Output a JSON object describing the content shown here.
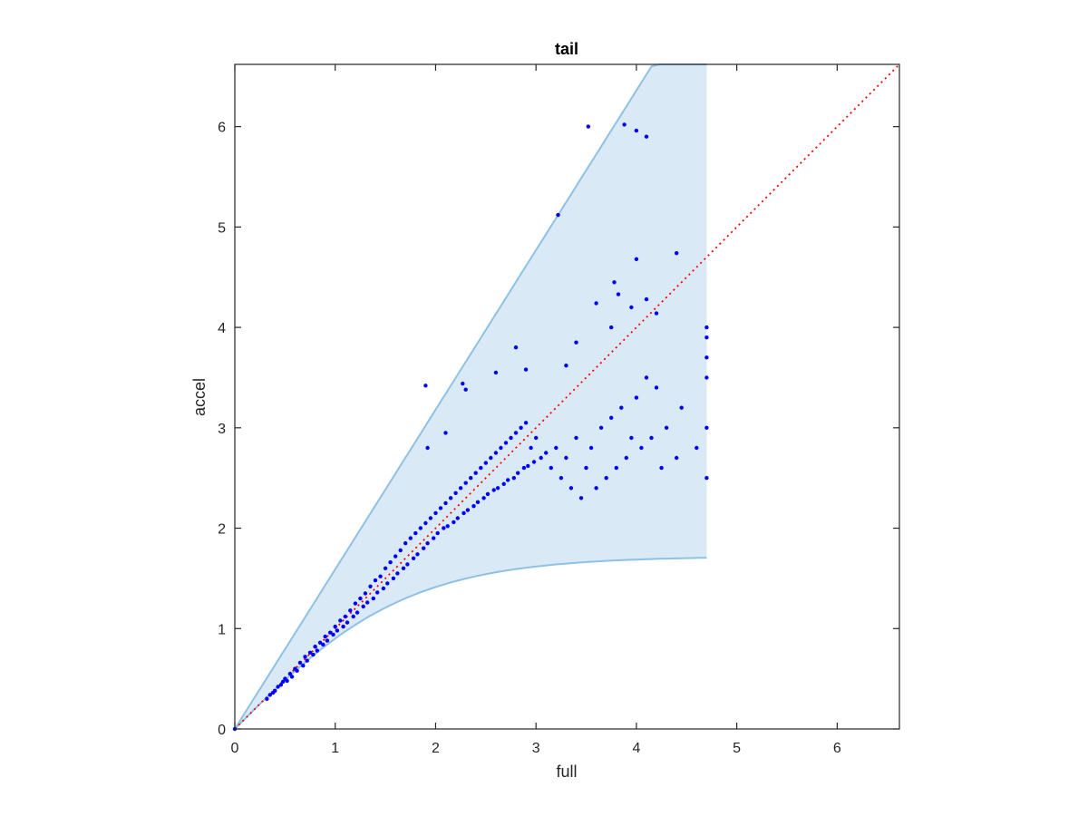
{
  "chart_data": {
    "type": "scatter",
    "title": "tail",
    "xlabel": "full",
    "ylabel": "accel",
    "xlim": [
      0,
      6.62
    ],
    "ylim": [
      0,
      6.62
    ],
    "xticks": [
      "0",
      "1",
      "2",
      "3",
      "4",
      "5",
      "6"
    ],
    "yticks": [
      "0",
      "1",
      "2",
      "3",
      "4",
      "5",
      "6"
    ],
    "grid": false,
    "colors": {
      "points": "#0000ff",
      "band_fill": "#d9e9f5",
      "band_edge": "#8fc1e3",
      "identity_line": "#ff0000",
      "axes": "#262626"
    },
    "band": {
      "x_max": 4.7,
      "upper_slope": 1.59,
      "lower_asymptote": 1.72
    },
    "identity_line": {
      "style": "dotted",
      "from": [
        0,
        0
      ],
      "to": [
        6.62,
        6.62
      ]
    },
    "series": [
      {
        "points": [
          [
            0,
            0
          ],
          [
            0.32,
            0.3
          ],
          [
            0.35,
            0.34
          ],
          [
            0.38,
            0.36
          ],
          [
            0.4,
            0.38
          ],
          [
            0.43,
            0.42
          ],
          [
            0.46,
            0.44
          ],
          [
            0.48,
            0.47
          ],
          [
            0.5,
            0.5
          ],
          [
            0.52,
            0.48
          ],
          [
            0.55,
            0.55
          ],
          [
            0.57,
            0.52
          ],
          [
            0.6,
            0.6
          ],
          [
            0.62,
            0.58
          ],
          [
            0.65,
            0.66
          ],
          [
            0.68,
            0.63
          ],
          [
            0.7,
            0.72
          ],
          [
            0.72,
            0.68
          ],
          [
            0.75,
            0.76
          ],
          [
            0.78,
            0.74
          ],
          [
            0.8,
            0.82
          ],
          [
            0.82,
            0.78
          ],
          [
            0.85,
            0.86
          ],
          [
            0.88,
            0.84
          ],
          [
            0.9,
            0.92
          ],
          [
            0.92,
            0.88
          ],
          [
            0.95,
            0.96
          ],
          [
            0.98,
            0.94
          ],
          [
            1.0,
            1.02
          ],
          [
            1.02,
            0.98
          ],
          [
            1.05,
            1.08
          ],
          [
            1.08,
            1.02
          ],
          [
            1.1,
            1.12
          ],
          [
            1.12,
            1.06
          ],
          [
            1.15,
            1.18
          ],
          [
            1.18,
            1.12
          ],
          [
            1.2,
            1.25
          ],
          [
            1.22,
            1.16
          ],
          [
            1.25,
            1.3
          ],
          [
            1.28,
            1.22
          ],
          [
            1.3,
            1.35
          ],
          [
            1.32,
            1.26
          ],
          [
            1.35,
            1.42
          ],
          [
            1.38,
            1.3
          ],
          [
            1.4,
            1.48
          ],
          [
            1.42,
            1.36
          ],
          [
            1.45,
            1.52
          ],
          [
            1.48,
            1.4
          ],
          [
            1.5,
            1.6
          ],
          [
            1.52,
            1.45
          ],
          [
            1.55,
            1.66
          ],
          [
            1.58,
            1.5
          ],
          [
            1.6,
            1.72
          ],
          [
            1.62,
            1.55
          ],
          [
            1.65,
            1.78
          ],
          [
            1.68,
            1.6
          ],
          [
            1.7,
            1.85
          ],
          [
            1.72,
            1.64
          ],
          [
            1.75,
            1.9
          ],
          [
            1.78,
            1.7
          ],
          [
            1.8,
            1.95
          ],
          [
            1.82,
            1.74
          ],
          [
            1.85,
            2.0
          ],
          [
            1.88,
            1.8
          ],
          [
            1.9,
            2.05
          ],
          [
            1.92,
            1.85
          ],
          [
            1.95,
            2.1
          ],
          [
            1.98,
            1.9
          ],
          [
            2.0,
            2.15
          ],
          [
            2.02,
            1.95
          ],
          [
            2.05,
            2.2
          ],
          [
            2.08,
            2.0
          ],
          [
            2.1,
            2.25
          ],
          [
            2.12,
            2.02
          ],
          [
            2.15,
            2.3
          ],
          [
            2.18,
            2.06
          ],
          [
            2.2,
            2.35
          ],
          [
            2.22,
            2.1
          ],
          [
            2.25,
            2.4
          ],
          [
            2.28,
            2.15
          ],
          [
            2.3,
            2.45
          ],
          [
            2.32,
            2.18
          ],
          [
            2.35,
            2.5
          ],
          [
            2.38,
            2.22
          ],
          [
            2.4,
            2.55
          ],
          [
            2.42,
            2.26
          ],
          [
            2.45,
            2.6
          ],
          [
            2.48,
            2.3
          ],
          [
            2.5,
            2.65
          ],
          [
            2.52,
            2.34
          ],
          [
            2.55,
            2.7
          ],
          [
            2.58,
            2.38
          ],
          [
            2.6,
            2.75
          ],
          [
            2.62,
            2.4
          ],
          [
            2.65,
            2.8
          ],
          [
            2.68,
            2.44
          ],
          [
            2.7,
            2.85
          ],
          [
            2.72,
            2.48
          ],
          [
            2.75,
            2.9
          ],
          [
            2.78,
            2.5
          ],
          [
            2.8,
            2.95
          ],
          [
            2.82,
            2.55
          ],
          [
            2.85,
            3.0
          ],
          [
            2.88,
            2.6
          ],
          [
            2.9,
            3.05
          ],
          [
            2.92,
            2.62
          ],
          [
            2.95,
            2.8
          ],
          [
            2.98,
            2.66
          ],
          [
            3.0,
            2.9
          ],
          [
            3.05,
            2.7
          ],
          [
            3.1,
            2.75
          ],
          [
            3.15,
            2.6
          ],
          [
            3.2,
            2.8
          ],
          [
            3.25,
            2.5
          ],
          [
            3.3,
            2.7
          ],
          [
            3.35,
            2.4
          ],
          [
            3.4,
            2.9
          ],
          [
            3.45,
            2.3
          ],
          [
            3.5,
            2.6
          ],
          [
            3.55,
            2.8
          ],
          [
            3.6,
            2.4
          ],
          [
            3.65,
            3.0
          ],
          [
            3.7,
            2.5
          ],
          [
            3.75,
            3.1
          ],
          [
            3.8,
            2.6
          ],
          [
            3.85,
            3.2
          ],
          [
            3.9,
            2.7
          ],
          [
            3.95,
            2.9
          ],
          [
            4.0,
            3.3
          ],
          [
            4.05,
            2.8
          ],
          [
            4.1,
            3.5
          ],
          [
            4.15,
            2.9
          ],
          [
            4.2,
            3.4
          ],
          [
            4.25,
            2.6
          ],
          [
            4.3,
            3.0
          ],
          [
            4.4,
            2.7
          ],
          [
            4.45,
            3.2
          ],
          [
            4.6,
            2.8
          ],
          [
            4.7,
            2.5
          ],
          [
            4.7,
            3.0
          ],
          [
            4.7,
            3.5
          ],
          [
            4.7,
            4.0
          ],
          [
            4.7,
            3.9
          ],
          [
            4.7,
            3.7
          ],
          [
            1.9,
            3.42
          ],
          [
            2.27,
            3.44
          ],
          [
            2.3,
            3.38
          ],
          [
            2.8,
            3.8
          ],
          [
            3.22,
            5.12
          ],
          [
            3.52,
            6.0
          ],
          [
            3.88,
            6.02
          ],
          [
            4.0,
            5.96
          ],
          [
            4.1,
            5.9
          ],
          [
            4.0,
            4.68
          ],
          [
            4.4,
            4.74
          ],
          [
            3.78,
            4.45
          ],
          [
            3.82,
            4.33
          ],
          [
            3.95,
            4.2
          ],
          [
            4.1,
            4.28
          ],
          [
            4.2,
            4.14
          ],
          [
            3.6,
            4.24
          ],
          [
            3.75,
            4.0
          ],
          [
            1.92,
            2.8
          ],
          [
            2.1,
            2.95
          ],
          [
            2.6,
            3.55
          ],
          [
            2.9,
            3.58
          ],
          [
            3.3,
            3.62
          ],
          [
            3.4,
            3.85
          ]
        ]
      }
    ]
  }
}
